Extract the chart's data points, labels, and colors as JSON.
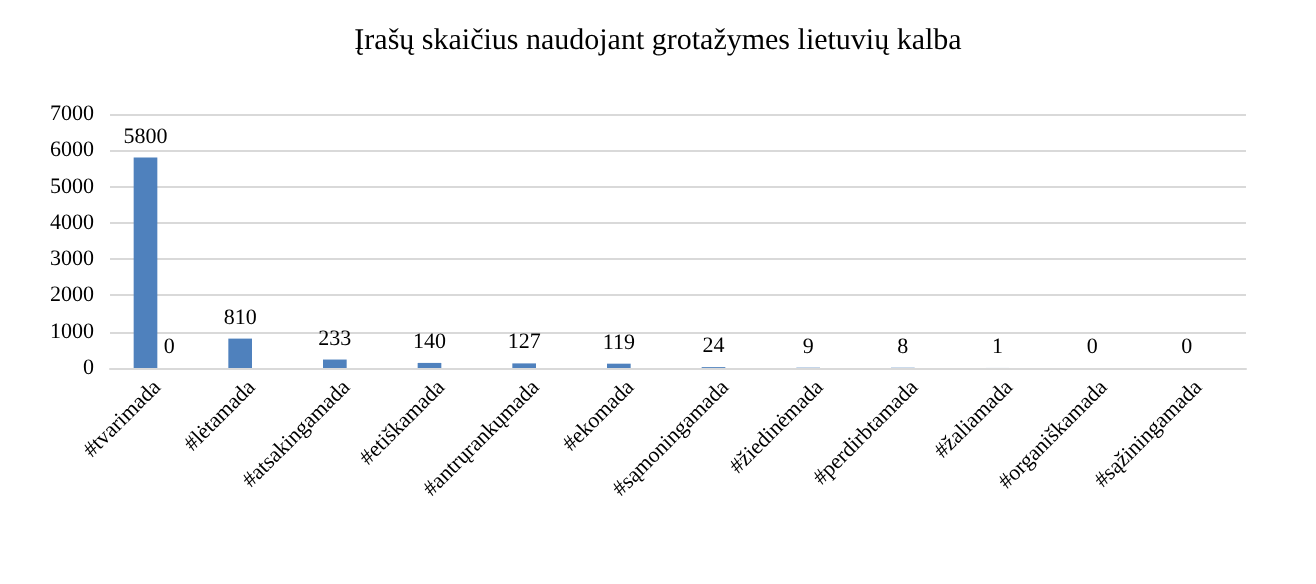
{
  "chart_data": {
    "type": "bar",
    "title": "Įrašų skaičius naudojant grotažymes lietuvių kalba",
    "categories": [
      "#tvarimada",
      "#lėtamada",
      "#atsakingamada",
      "#etiškamada",
      "#antrųrankųmada",
      "#ekomada",
      "#sąmoningamada",
      "#žiedinėmada",
      "#perdirbtamada",
      "#žaliamada",
      "#organiškamada",
      "#sąžiningamada"
    ],
    "series": [
      {
        "color": "#4f81bd",
        "values": [
          5800,
          810,
          233,
          140,
          127,
          119,
          24,
          9,
          8,
          1,
          0,
          0
        ]
      },
      {
        "color": "#c0504d",
        "values": [
          0,
          null,
          null,
          null,
          null,
          null,
          null,
          null,
          null,
          null,
          null,
          null
        ]
      }
    ],
    "ylim": [
      0,
      7000
    ],
    "yticks": [
      0,
      1000,
      2000,
      3000,
      4000,
      5000,
      6000,
      7000
    ],
    "grid": "y",
    "data_labels": true
  }
}
